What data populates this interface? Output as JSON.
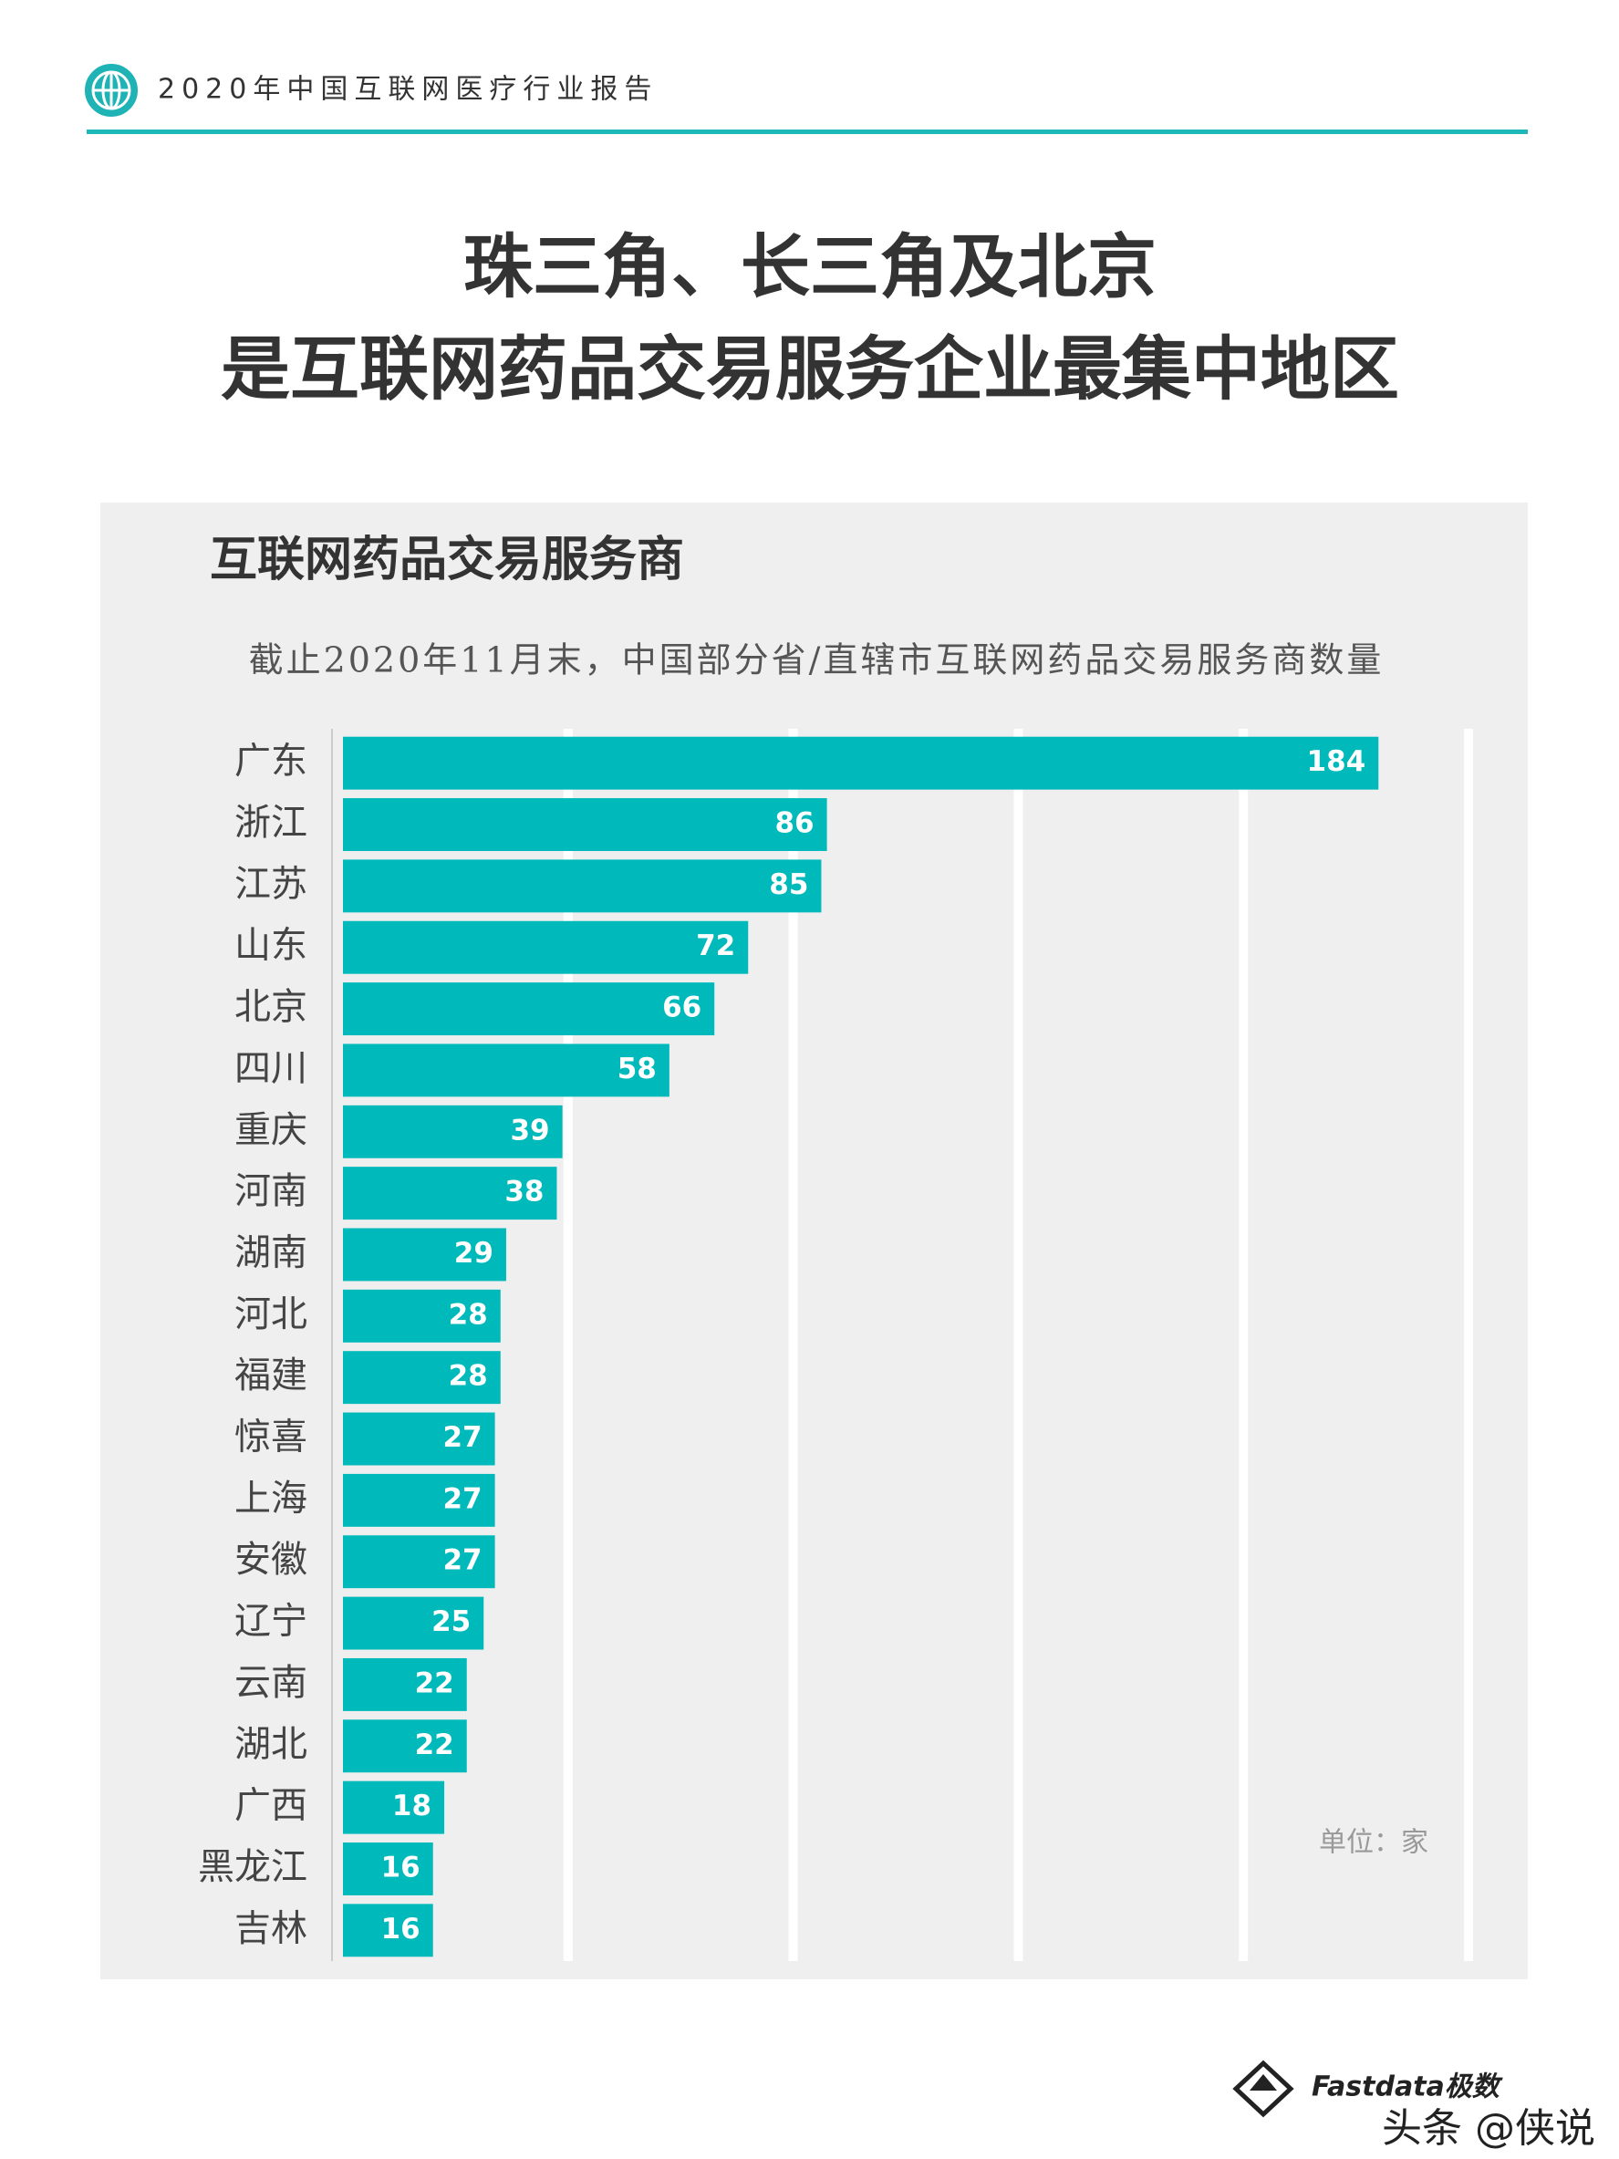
{
  "header": {
    "report": "2020年中国互联网医疗行业报告"
  },
  "title": {
    "line1": "珠三角、长三角及北京",
    "line2": "是互联网药品交易服务企业最集中地区"
  },
  "chart_data": {
    "type": "bar",
    "orientation": "horizontal",
    "title": "互联网药品交易服务商",
    "subtitle": "截止2020年11月末，中国部分省/直辖市互联网药品交易服务商数量",
    "unit": "单位：家",
    "categories": [
      "广东",
      "浙江",
      "江苏",
      "山东",
      "北京",
      "四川",
      "重庆",
      "河南",
      "湖南",
      "河北",
      "福建",
      "惊喜",
      "上海",
      "安徽",
      "辽宁",
      "云南",
      "湖北",
      "广西",
      "黑龙江",
      "吉林"
    ],
    "values": [
      184,
      86,
      85,
      72,
      66,
      58,
      39,
      38,
      29,
      28,
      28,
      27,
      27,
      27,
      25,
      22,
      22,
      18,
      16,
      16
    ],
    "color": "#00b9ba",
    "xlim": [
      0,
      200
    ],
    "xticks": [
      0,
      40,
      80,
      120,
      160,
      200
    ],
    "grid": true
  },
  "footer": {
    "brand": "Fastdata极数",
    "watermark": "头条 @侠说"
  }
}
